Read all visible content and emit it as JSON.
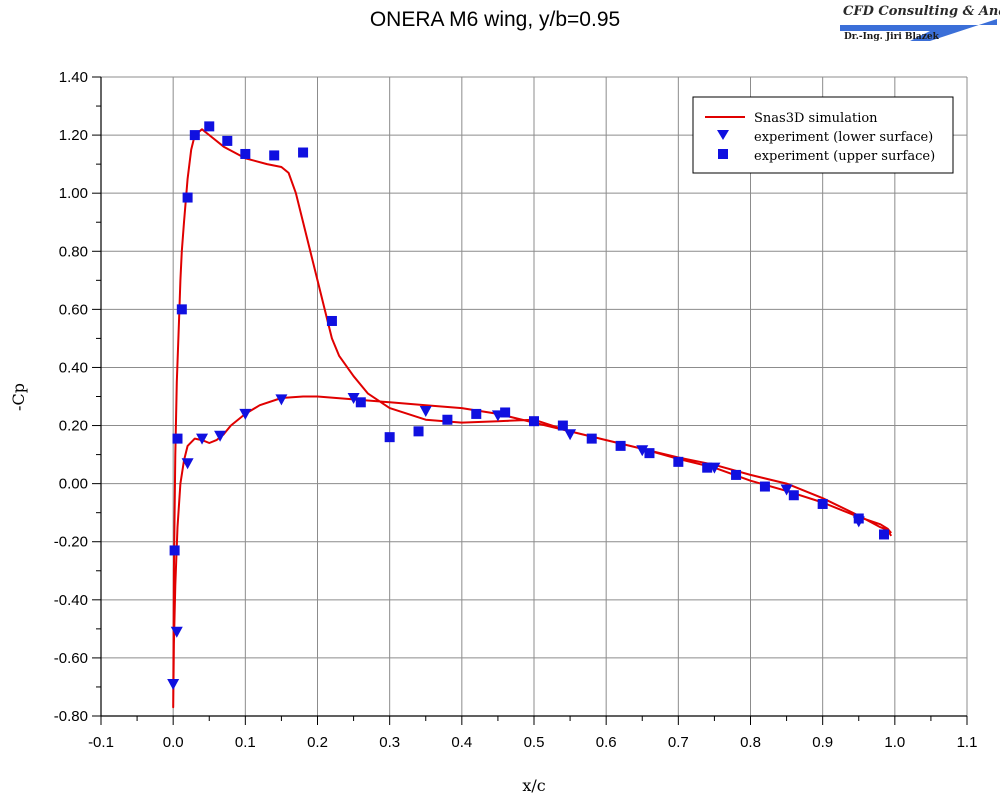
{
  "logo": {
    "title": "CFD Consulting & Analysis",
    "subtitle": "Dr.-Ing. Jiri Blazek",
    "accent_color": "#3b6fd8"
  },
  "chart_data": {
    "type": "line",
    "title": "ONERA M6 wing, y/b=0.95",
    "xlabel": "x/c",
    "ylabel": "-Cp",
    "xlim": [
      -0.1,
      1.1
    ],
    "ylim": [
      -0.8,
      1.4
    ],
    "x_ticks": [
      "-0.1",
      "0.0",
      "0.1",
      "0.2",
      "0.3",
      "0.4",
      "0.5",
      "0.6",
      "0.7",
      "0.8",
      "0.9",
      "1.0",
      "1.1"
    ],
    "y_ticks": [
      "1.40",
      "1.20",
      "1.00",
      "0.80",
      "0.60",
      "0.40",
      "0.20",
      "0.00",
      "-0.20",
      "-0.40",
      "-0.60",
      "-0.80"
    ],
    "grid": true,
    "legend_position": "top-right",
    "series": [
      {
        "name": "Snas3D simulation",
        "kind": "line",
        "color": "#e00000",
        "x": [
          0.995,
          0.99,
          0.98,
          0.95,
          0.9,
          0.85,
          0.8,
          0.75,
          0.7,
          0.65,
          0.6,
          0.55,
          0.5,
          0.45,
          0.4,
          0.35,
          0.3,
          0.27,
          0.25,
          0.23,
          0.22,
          0.21,
          0.2,
          0.19,
          0.18,
          0.17,
          0.16,
          0.15,
          0.13,
          0.1,
          0.07,
          0.05,
          0.04,
          0.03,
          0.025,
          0.02,
          0.015,
          0.012,
          0.01,
          0.008,
          0.005,
          0.003,
          0.001,
          0.0,
          0.001,
          0.003,
          0.006,
          0.01,
          0.015,
          0.02,
          0.03,
          0.04,
          0.05,
          0.06,
          0.07,
          0.08,
          0.1,
          0.12,
          0.15,
          0.18,
          0.2,
          0.25,
          0.3,
          0.35,
          0.4,
          0.45,
          0.5,
          0.55,
          0.6,
          0.65,
          0.7,
          0.75,
          0.8,
          0.85,
          0.9,
          0.95,
          0.98,
          0.99,
          0.995
        ],
        "y": [
          -0.18,
          -0.16,
          -0.15,
          -0.11,
          -0.05,
          0.0,
          0.03,
          0.065,
          0.09,
          0.12,
          0.15,
          0.18,
          0.22,
          0.215,
          0.21,
          0.22,
          0.26,
          0.31,
          0.37,
          0.44,
          0.5,
          0.6,
          0.7,
          0.8,
          0.9,
          1.0,
          1.07,
          1.09,
          1.1,
          1.12,
          1.16,
          1.2,
          1.22,
          1.2,
          1.15,
          1.05,
          0.9,
          0.8,
          0.7,
          0.55,
          0.35,
          0.1,
          -0.3,
          -0.77,
          -0.55,
          -0.35,
          -0.15,
          0.0,
          0.08,
          0.13,
          0.155,
          0.15,
          0.14,
          0.15,
          0.17,
          0.2,
          0.24,
          0.27,
          0.295,
          0.3,
          0.3,
          0.29,
          0.28,
          0.27,
          0.26,
          0.24,
          0.21,
          0.18,
          0.15,
          0.12,
          0.085,
          0.055,
          0.01,
          -0.025,
          -0.065,
          -0.115,
          -0.14,
          -0.155,
          -0.17
        ]
      },
      {
        "name": "experiment (lower surface)",
        "kind": "triangle-down",
        "color": "#1010e0",
        "x": [
          0.0,
          0.005,
          0.02,
          0.04,
          0.065,
          0.1,
          0.15,
          0.25,
          0.35,
          0.45,
          0.55,
          0.65,
          0.75,
          0.85,
          0.95
        ],
        "y": [
          -0.69,
          -0.51,
          0.07,
          0.155,
          0.165,
          0.24,
          0.29,
          0.295,
          0.25,
          0.235,
          0.17,
          0.115,
          0.055,
          -0.02,
          -0.13
        ]
      },
      {
        "name": "experiment (upper surface)",
        "kind": "square",
        "color": "#1010e0",
        "x": [
          0.002,
          0.006,
          0.012,
          0.02,
          0.03,
          0.05,
          0.075,
          0.1,
          0.14,
          0.18,
          0.22,
          0.26,
          0.3,
          0.34,
          0.38,
          0.42,
          0.46,
          0.5,
          0.54,
          0.58,
          0.62,
          0.66,
          0.7,
          0.74,
          0.78,
          0.82,
          0.86,
          0.9,
          0.95,
          0.985
        ],
        "y": [
          -0.23,
          0.155,
          0.6,
          0.985,
          1.2,
          1.23,
          1.18,
          1.135,
          1.13,
          1.14,
          0.56,
          0.28,
          0.16,
          0.18,
          0.22,
          0.24,
          0.245,
          0.215,
          0.2,
          0.155,
          0.13,
          0.105,
          0.075,
          0.055,
          0.03,
          -0.01,
          -0.04,
          -0.07,
          -0.12,
          -0.175
        ]
      }
    ]
  }
}
